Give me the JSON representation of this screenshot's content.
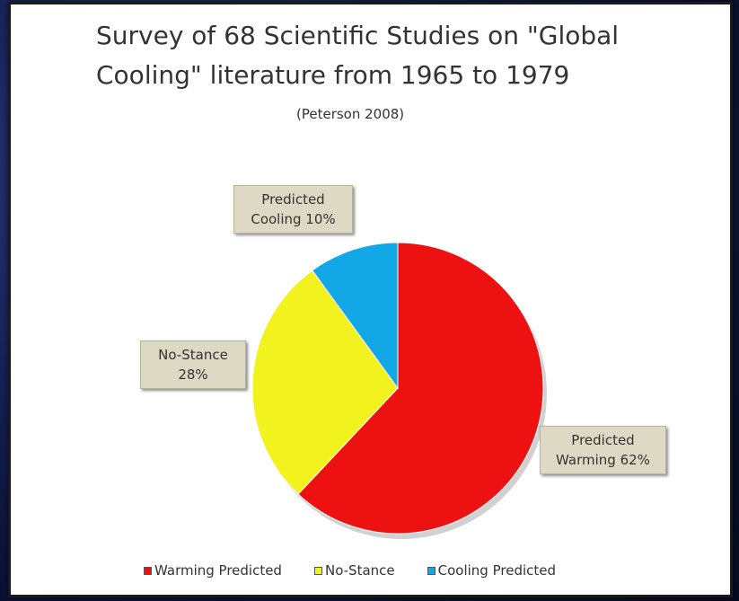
{
  "chart_data": {
    "type": "pie",
    "title_lines": [
      "Survey of 68 Scientific Studies on \"Global",
      "Cooling\" literature  from 1965 to 1979"
    ],
    "subtitle": "(Peterson 2008)",
    "categories": [
      "Warming Predicted",
      "No-Stance",
      "Cooling Predicted"
    ],
    "values": [
      62,
      28,
      10
    ],
    "colors": [
      "#ee1111",
      "#f2f21e",
      "#12a8e6"
    ],
    "start_angle_deg": 0,
    "direction": "clockwise",
    "data_labels": [
      {
        "line1": "Predicted",
        "line2": "Warming 62%"
      },
      {
        "line1": "No-Stance",
        "line2": "28%"
      },
      {
        "line1": "Predicted",
        "line2": "Cooling 10%"
      }
    ],
    "legend_position": "bottom"
  }
}
